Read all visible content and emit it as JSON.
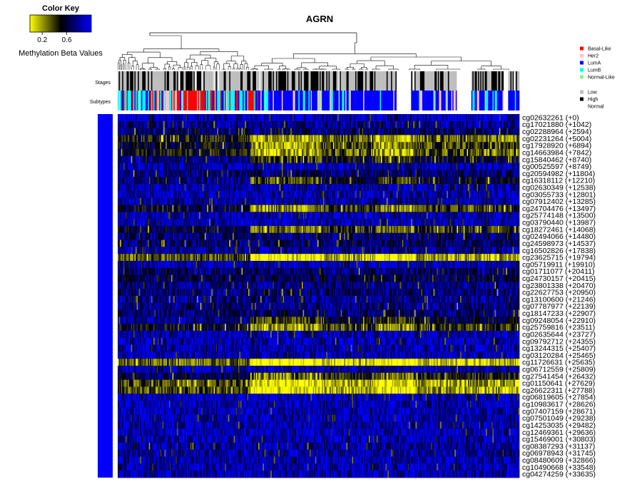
{
  "chart_data": {
    "type": "heatmap",
    "title": "AGRN",
    "color_key": {
      "title": "Color Key",
      "label": "Methylation Beta Values",
      "ticks": [
        "0.2",
        "0.6"
      ],
      "tick_values": [
        0.2,
        0.6
      ],
      "range": [
        0,
        1
      ],
      "colors": {
        "low": "#FFFF00",
        "mid": "#000000",
        "high": "#0000FF"
      }
    },
    "annotation_rows": [
      {
        "label": "Stages"
      },
      {
        "label": "Subtypes"
      }
    ],
    "legend": {
      "subtypes": [
        {
          "label": "Basal-Like",
          "color": "#FF0000"
        },
        {
          "label": "Her2",
          "color": "#FFC0CB"
        },
        {
          "label": "LumA",
          "color": "#0000FF"
        },
        {
          "label": "LumB",
          "color": "#00FFFF"
        },
        {
          "label": "Normal-Like",
          "color": "#90EE90"
        }
      ],
      "stages": [
        {
          "label": "Low",
          "color": "#BEBEBE"
        },
        {
          "label": "High",
          "color": "#000000"
        },
        {
          "label": "Normal",
          "color": "#FFFFFF"
        }
      ]
    },
    "row_side_color": "#0000FF",
    "n_samples": 360,
    "rows": [
      {
        "label": "cg02632261 (+0)",
        "mean": 0.88
      },
      {
        "label": "cg17021880 (+1042)",
        "mean": 0.78
      },
      {
        "label": "cg02288964 (+2594)",
        "mean": 0.72
      },
      {
        "label": "cg02231264 (+5004)",
        "mean": 0.3
      },
      {
        "label": "cg17928920 (+6894)",
        "mean": 0.4
      },
      {
        "label": "cg14663984 (+7842)",
        "mean": 0.35
      },
      {
        "label": "cg15840462 (+8740)",
        "mean": 0.58
      },
      {
        "label": "cg00525597 (+8749)",
        "mean": 0.85
      },
      {
        "label": "cg20594982 (+11804)",
        "mean": 0.72
      },
      {
        "label": "cg16318112 (+12210)",
        "mean": 0.58
      },
      {
        "label": "cg02630349 (+12538)",
        "mean": 0.82
      },
      {
        "label": "cg03055733 (+12801)",
        "mean": 0.86
      },
      {
        "label": "cg07912402 (+13285)",
        "mean": 0.82
      },
      {
        "label": "cg24704476 (+13497)",
        "mean": 0.42
      },
      {
        "label": "cg25774148 (+13500)",
        "mean": 0.85
      },
      {
        "label": "cg03790440 (+13987)",
        "mean": 0.86
      },
      {
        "label": "cg18272461 (+14068)",
        "mean": 0.45
      },
      {
        "label": "cg02494066 (+14480)",
        "mean": 0.72
      },
      {
        "label": "cg24598973 (+14537)",
        "mean": 0.7
      },
      {
        "label": "cg16502826 (+17838)",
        "mean": 0.8
      },
      {
        "label": "cg23625715 (+19794)",
        "mean": 0.18
      },
      {
        "label": "cg05719911 (+19910)",
        "mean": 0.85
      },
      {
        "label": "cg01711077 (+20411)",
        "mean": 0.72
      },
      {
        "label": "cg24730157 (+20415)",
        "mean": 0.66
      },
      {
        "label": "cg23801338 (+20470)",
        "mean": 0.75
      },
      {
        "label": "cg22627753 (+20950)",
        "mean": 0.72
      },
      {
        "label": "cg13100600 (+21246)",
        "mean": 0.78
      },
      {
        "label": "cg07787977 (+22139)",
        "mean": 0.75
      },
      {
        "label": "cg18147233 (+22907)",
        "mean": 0.72
      },
      {
        "label": "cg09248054 (+22910)",
        "mean": 0.6
      },
      {
        "label": "cg25759816 (+23511)",
        "mean": 0.4
      },
      {
        "label": "cg02635644 (+23727)",
        "mean": 0.84
      },
      {
        "label": "cg09792712 (+24355)",
        "mean": 0.85
      },
      {
        "label": "cg13244315 (+25407)",
        "mean": 0.84
      },
      {
        "label": "cg03120284 (+25465)",
        "mean": 0.86
      },
      {
        "label": "cg11726631 (+25635)",
        "mean": 0.12
      },
      {
        "label": "cg06712559 (+25809)",
        "mean": 0.82
      },
      {
        "label": "cg27541454 (+26432)",
        "mean": 0.48
      },
      {
        "label": "cg01150641 (+27629)",
        "mean": 0.2
      },
      {
        "label": "cg26622311 (+27788)",
        "mean": 0.18
      },
      {
        "label": "cg06819605 (+27854)",
        "mean": 0.88
      },
      {
        "label": "cg10983617 (+28626)",
        "mean": 0.86
      },
      {
        "label": "cg07407159 (+28671)",
        "mean": 0.86
      },
      {
        "label": "cg07501049 (+29238)",
        "mean": 0.85
      },
      {
        "label": "cg14253035 (+29482)",
        "mean": 0.84
      },
      {
        "label": "cg12469361 (+29636)",
        "mean": 0.86
      },
      {
        "label": "cg15469001 (+30803)",
        "mean": 0.84
      },
      {
        "label": "cg08387293 (+31137)",
        "mean": 0.8
      },
      {
        "label": "cg06978943 (+31745)",
        "mean": 0.82
      },
      {
        "label": "cg08480609 (+32866)",
        "mean": 0.84
      },
      {
        "label": "cg10490668 (+33548)",
        "mean": 0.84
      },
      {
        "label": "cg04274259 (+33635)",
        "mean": 0.86
      }
    ]
  }
}
